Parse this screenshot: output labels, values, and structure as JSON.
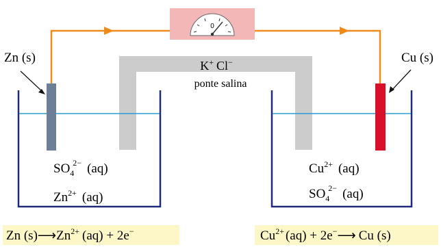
{
  "left_electrode": {
    "label": "Zn (s)",
    "color": "#6d7f96",
    "solution": {
      "line1": {
        "base": "SO",
        "sub": "4",
        "sup": "2−",
        "state": "(aq)"
      },
      "line2": {
        "base": "Zn",
        "sup": "2+",
        "state": "(aq)"
      }
    },
    "half_reaction": {
      "left": "Zn (s)",
      "arrow": "⟶",
      "ion": "Zn",
      "ion_sup": "2+",
      "rest": "(aq) + 2e",
      "e_sup": "−"
    }
  },
  "right_electrode": {
    "label": "Cu (s)",
    "color": "#d8102a",
    "solution": {
      "line1": {
        "base": "Cu",
        "sup": "2+",
        "state": "(aq)"
      },
      "line2": {
        "base": "SO",
        "sub": "4",
        "sup": "2−",
        "state": "(aq)"
      }
    },
    "half_reaction": {
      "ion": "Cu",
      "ion_sup": "2+",
      "mid": "(aq) + 2e",
      "e_sup": "−",
      "arrow": "⟶",
      "right": "Cu (s)"
    }
  },
  "salt_bridge": {
    "cation": "K",
    "cation_sup": "+",
    "anion": "Cl",
    "anion_sup": "−",
    "label": "ponte salina",
    "color": "#cccccc"
  },
  "voltmeter": {
    "reading": "0",
    "box_color": "#f4b7b7",
    "dial_color": "#ffffff"
  },
  "colors": {
    "wire": "#f08a1a",
    "beaker": "#1f2a78",
    "solution_line": "#2a9bd6",
    "reaction_bg": "#fdf6c6"
  }
}
